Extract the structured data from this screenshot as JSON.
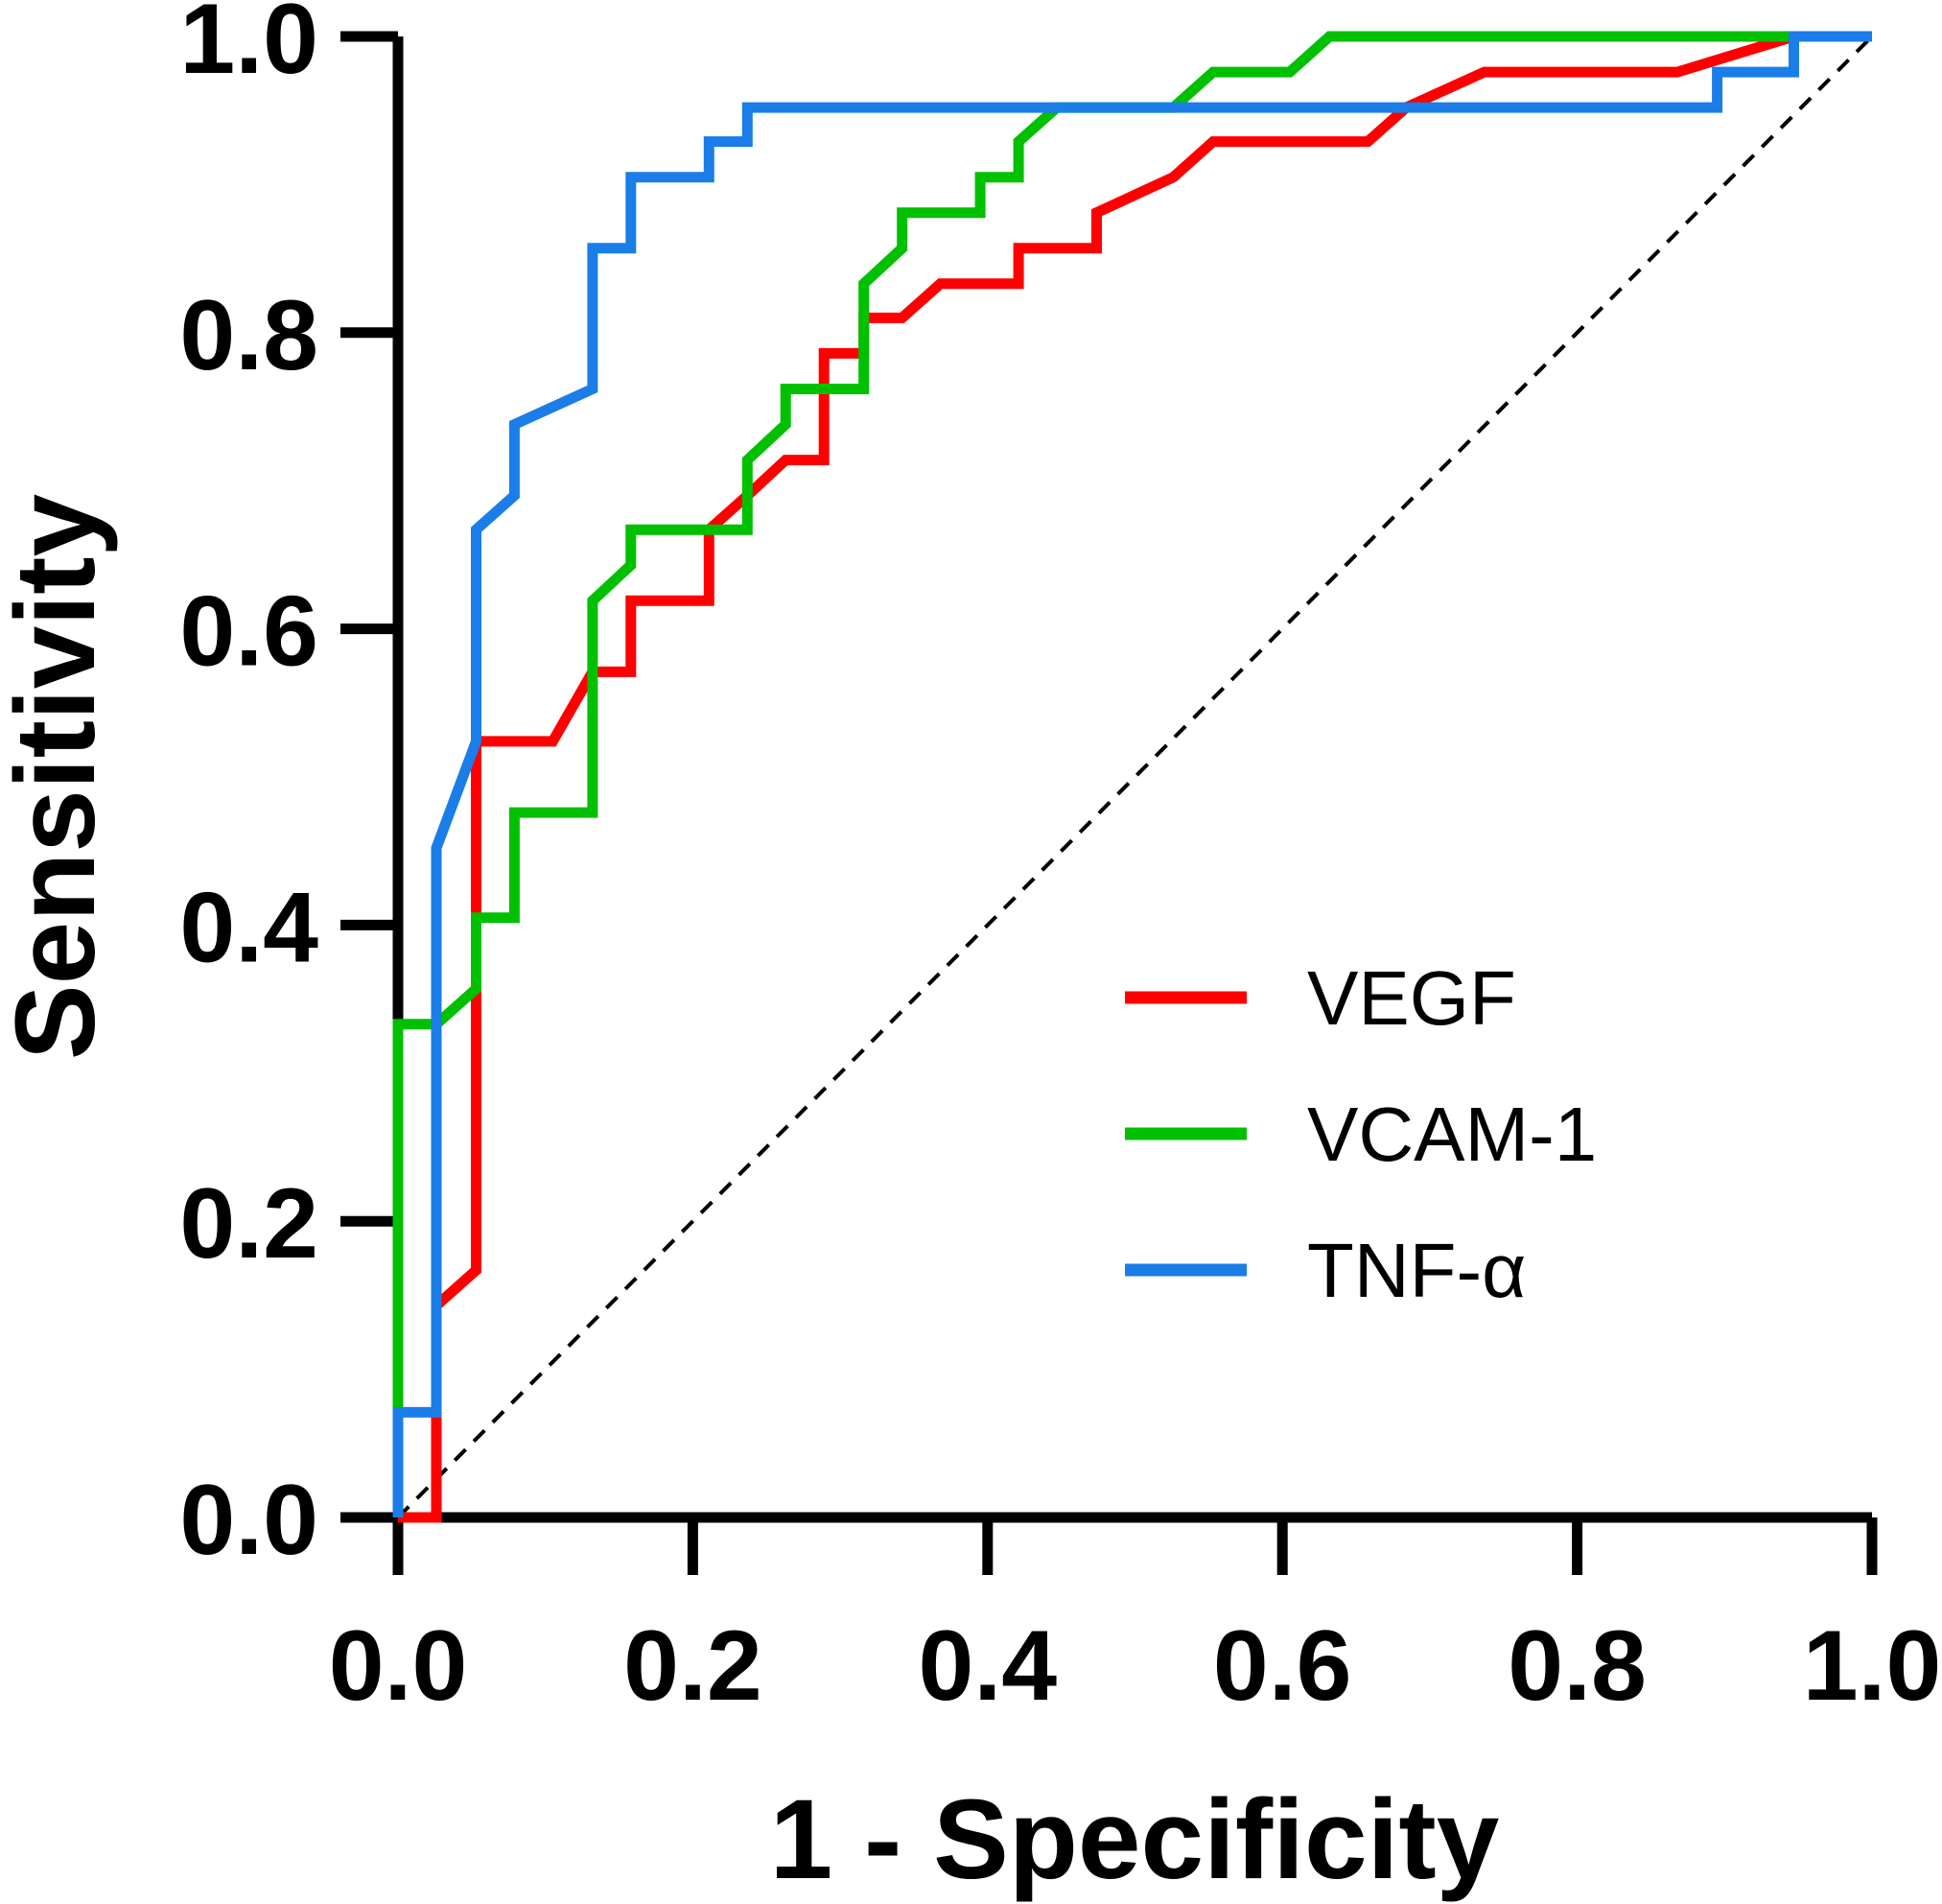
{
  "chart_data": {
    "type": "line",
    "title": "",
    "xlabel": "1 - Specificity",
    "ylabel": "Sensitivity",
    "xlim": [
      0,
      1
    ],
    "ylim": [
      0,
      1
    ],
    "x_ticks": [
      "0.0",
      "0.2",
      "0.4",
      "0.6",
      "0.8",
      "1.0"
    ],
    "y_ticks": [
      "0.0",
      "0.2",
      "0.4",
      "0.6",
      "0.8",
      "1.0"
    ],
    "grid": false,
    "legend_position": "center-right",
    "reference_line": {
      "name": "chance",
      "style": "dashed",
      "color": "#000000",
      "x": [
        0,
        1
      ],
      "y": [
        0,
        1
      ]
    },
    "series": [
      {
        "name": "VEGF",
        "color": "#ff0000",
        "x": [
          0,
          0.026,
          0.026,
          0.053,
          0.053,
          0.105,
          0.132,
          0.158,
          0.158,
          0.211,
          0.211,
          0.237,
          0.263,
          0.289,
          0.289,
          0.316,
          0.316,
          0.342,
          0.368,
          0.395,
          0.421,
          0.421,
          0.474,
          0.474,
          0.526,
          0.553,
          0.658,
          0.684,
          0.737,
          0.868,
          0.947,
          1.0
        ],
        "y": [
          0,
          0,
          0.143,
          0.167,
          0.524,
          0.524,
          0.571,
          0.571,
          0.619,
          0.619,
          0.667,
          0.69,
          0.714,
          0.714,
          0.786,
          0.786,
          0.81,
          0.81,
          0.833,
          0.833,
          0.833,
          0.857,
          0.857,
          0.881,
          0.905,
          0.929,
          0.929,
          0.952,
          0.976,
          0.976,
          1.0,
          1.0
        ]
      },
      {
        "name": "VCAM-1",
        "color": "#00c000",
        "x": [
          0,
          0,
          0.026,
          0.053,
          0.053,
          0.079,
          0.079,
          0.132,
          0.132,
          0.158,
          0.158,
          0.237,
          0.237,
          0.263,
          0.263,
          0.316,
          0.316,
          0.342,
          0.342,
          0.395,
          0.395,
          0.421,
          0.421,
          0.447,
          0.526,
          0.553,
          0.605,
          0.632,
          1.0
        ],
        "y": [
          0,
          0.333,
          0.333,
          0.357,
          0.405,
          0.405,
          0.476,
          0.476,
          0.619,
          0.643,
          0.667,
          0.667,
          0.714,
          0.738,
          0.762,
          0.762,
          0.833,
          0.857,
          0.881,
          0.881,
          0.905,
          0.905,
          0.929,
          0.952,
          0.952,
          0.976,
          0.976,
          1.0,
          1.0
        ]
      },
      {
        "name": "TNF-α",
        "color": "#1a7de8",
        "x": [
          0,
          0,
          0.026,
          0.026,
          0.053,
          0.053,
          0.079,
          0.079,
          0.132,
          0.132,
          0.158,
          0.158,
          0.211,
          0.211,
          0.237,
          0.237,
          0.895,
          0.895,
          0.947,
          0.947,
          1.0
        ],
        "y": [
          0,
          0.071,
          0.071,
          0.452,
          0.524,
          0.667,
          0.69,
          0.738,
          0.762,
          0.857,
          0.857,
          0.905,
          0.905,
          0.929,
          0.929,
          0.952,
          0.952,
          0.976,
          0.976,
          1.0,
          1.0
        ]
      }
    ]
  }
}
